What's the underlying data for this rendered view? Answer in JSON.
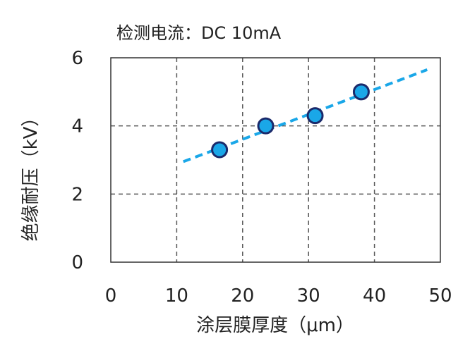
{
  "chart_data": {
    "type": "scatter",
    "title": "检测电流：DC 10mA",
    "xlabel": "涂层膜厚度（μm）",
    "ylabel": "绝缘耐压（kV）",
    "xlim": [
      0,
      50
    ],
    "ylim": [
      0,
      6
    ],
    "x_ticks": [
      "0",
      "10",
      "20",
      "30",
      "40",
      "50"
    ],
    "y_ticks": [
      "0",
      "2",
      "4",
      "6"
    ],
    "grid": true,
    "points": [
      {
        "x": 16.5,
        "y": 3.3
      },
      {
        "x": 23.5,
        "y": 4.0
      },
      {
        "x": 31.0,
        "y": 4.3
      },
      {
        "x": 38.0,
        "y": 5.0
      }
    ],
    "trendline": {
      "x": [
        11,
        48
      ],
      "y": [
        2.95,
        5.65
      ]
    },
    "colors": {
      "marker_fill": "#1aa7e8",
      "marker_edge": "#1b2a6b",
      "trendline": "#1aa7e8",
      "grid": "#555555",
      "axis": "#333333"
    }
  }
}
